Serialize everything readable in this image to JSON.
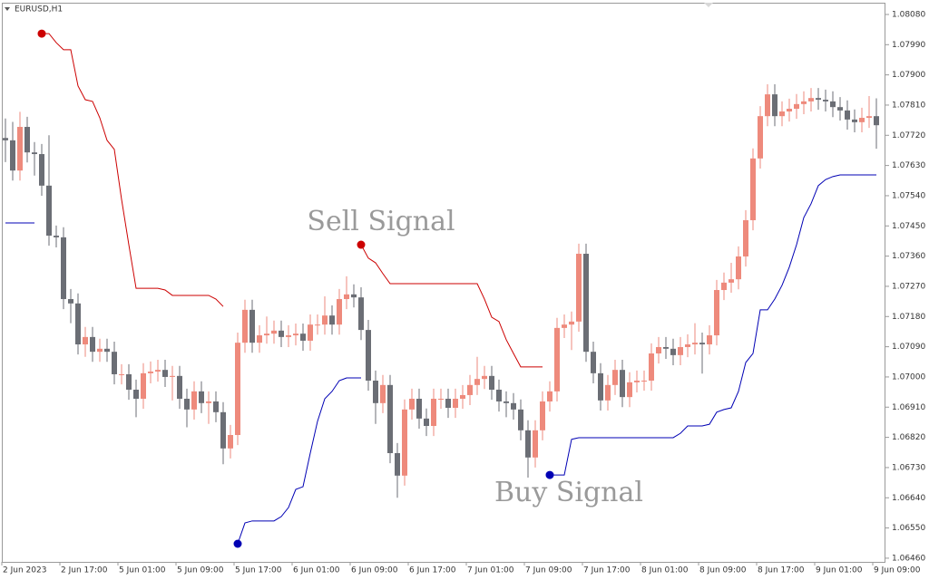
{
  "chart_data": {
    "type": "candlestick",
    "title": "EURUSD,H1",
    "categories": [
      "2 Jun 2023",
      null,
      null,
      null,
      null,
      null,
      null,
      null,
      "2 Jun 17:00",
      null,
      null,
      null,
      null,
      null,
      null,
      null,
      "5 Jun 01:00",
      null,
      null,
      null,
      null,
      null,
      null,
      null,
      "5 Jun 09:00",
      null,
      null,
      null,
      null,
      null,
      null,
      null,
      "5 Jun 17:00",
      null,
      null,
      null,
      null,
      null,
      null,
      null,
      "6 Jun 01:00",
      null,
      null,
      null,
      null,
      null,
      null,
      null,
      "6 Jun 09:00",
      null,
      null,
      null,
      null,
      null,
      null,
      null,
      "6 Jun 17:00",
      null,
      null,
      null,
      null,
      null,
      null,
      null,
      "7 Jun 01:00",
      null,
      null,
      null,
      null,
      null,
      null,
      null,
      "7 Jun 09:00",
      null,
      null,
      null,
      null,
      null,
      null,
      null,
      "7 Jun 17:00",
      null,
      null,
      null,
      null,
      null,
      null,
      null,
      "8 Jun 01:00",
      null,
      null,
      null,
      null,
      null,
      null,
      null,
      "8 Jun 09:00",
      null,
      null,
      null,
      null,
      null,
      null,
      null,
      "8 Jun 17:00",
      null,
      null,
      null,
      null,
      null,
      null,
      null,
      "9 Jun 01:00",
      null,
      null,
      null,
      null,
      null,
      null,
      null,
      "9 Jun 09:00"
    ],
    "open": [
      1.07712,
      1.07705,
      1.07615,
      1.07745,
      1.07669,
      1.07664,
      1.0757,
      1.07421,
      1.07416,
      1.07232,
      1.07219,
      1.07097,
      1.07119,
      1.07075,
      1.07084,
      1.07075,
      1.07008,
      1.07008,
      1.06962,
      1.06935,
      1.07011,
      1.07016,
      1.07021,
      1.07,
      1.07003,
      1.06935,
      1.06903,
      1.06957,
      1.06922,
      1.06927,
      1.06895,
      1.06787,
      1.06827,
      1.07102,
      1.072,
      1.07102,
      1.07124,
      1.07129,
      1.07138,
      1.07119,
      1.07124,
      1.07129,
      1.07108,
      1.07156,
      1.07156,
      1.07183,
      1.07156,
      1.07232,
      1.07246,
      1.07237,
      1.0714,
      1.06989,
      1.06922,
      1.06976,
      1.06773,
      1.06706,
      1.06903,
      1.06935,
      1.06876,
      1.06854,
      1.06935,
      1.06935,
      1.06908,
      1.06935,
      1.06946,
      1.06976,
      1.06994,
      1.07003,
      1.06962,
      1.06927,
      1.06922,
      1.06903,
      1.06841,
      1.0676,
      1.06841,
      1.06927,
      1.06957,
      1.07146,
      1.07156,
      1.07165,
      1.07367,
      1.07075,
      1.07011,
      1.0693,
      1.06976,
      1.07021,
      1.0694,
      1.06984,
      1.06989,
      1.06989,
      1.0707,
      1.07089,
      1.07084,
      1.07065,
      1.07089,
      1.07097,
      1.07102,
      1.07097,
      1.07124,
      1.07259,
      1.07281,
      1.07291,
      1.07359,
      1.07467,
      1.07651,
      1.07777,
      1.07842,
      1.07777,
      1.07791,
      1.07799,
      1.07813,
      1.07821,
      1.07831,
      1.07826,
      1.07821,
      1.07804,
      1.07794,
      1.07767,
      1.07759,
      1.07772,
      1.07777
    ],
    "high": [
      1.0777,
      1.0776,
      1.0779,
      1.07775,
      1.077,
      1.07694,
      1.0772,
      1.07451,
      1.07446,
      1.07262,
      1.07249,
      1.07149,
      1.07149,
      1.07114,
      1.07114,
      1.07105,
      1.07038,
      1.07038,
      1.06992,
      1.07041,
      1.07046,
      1.07051,
      1.07051,
      1.07033,
      1.07033,
      1.06965,
      1.06987,
      1.06987,
      1.06957,
      1.06957,
      1.06925,
      1.06857,
      1.07132,
      1.0723,
      1.0723,
      1.07154,
      1.0718,
      1.07168,
      1.07168,
      1.07154,
      1.07159,
      1.07159,
      1.07186,
      1.07186,
      1.0724,
      1.07213,
      1.07262,
      1.073,
      1.07276,
      1.07267,
      1.0717,
      1.07019,
      1.07006,
      1.07006,
      1.06803,
      1.06933,
      1.06965,
      1.06965,
      1.06906,
      1.06965,
      1.06965,
      1.06965,
      1.06965,
      1.06976,
      1.07006,
      1.0706,
      1.07033,
      1.07033,
      1.06992,
      1.06957,
      1.06952,
      1.06933,
      1.06871,
      1.06871,
      1.06957,
      1.06987,
      1.07176,
      1.07186,
      1.07195,
      1.07397,
      1.07397,
      1.07105,
      1.07041,
      1.07006,
      1.07051,
      1.07051,
      1.07014,
      1.07019,
      1.07019,
      1.071,
      1.07119,
      1.07119,
      1.07114,
      1.07119,
      1.07127,
      1.0716,
      1.07132,
      1.07154,
      1.07289,
      1.07311,
      1.0734,
      1.07389,
      1.07497,
      1.07681,
      1.07807,
      1.07872,
      1.07872,
      1.07821,
      1.07829,
      1.07843,
      1.07851,
      1.07861,
      1.07861,
      1.07856,
      1.07851,
      1.07834,
      1.07824,
      1.07797,
      1.07802,
      1.07837,
      1.0783
    ],
    "low": [
      1.0764,
      1.07585,
      1.07585,
      1.07639,
      1.076,
      1.0754,
      1.07391,
      1.07386,
      1.07202,
      1.0716,
      1.07067,
      1.0706,
      1.07045,
      1.07045,
      1.07045,
      1.06978,
      1.06978,
      1.06932,
      1.0688,
      1.06905,
      1.06981,
      1.06986,
      1.0697,
      1.0693,
      1.06905,
      1.0685,
      1.06873,
      1.06892,
      1.0686,
      1.06865,
      1.0674,
      1.06757,
      1.06797,
      1.07072,
      1.07072,
      1.07072,
      1.07099,
      1.07099,
      1.07089,
      1.07089,
      1.07094,
      1.07078,
      1.07078,
      1.07126,
      1.07126,
      1.07126,
      1.07126,
      1.07202,
      1.07207,
      1.0711,
      1.06959,
      1.0686,
      1.06892,
      1.06743,
      1.0664,
      1.06676,
      1.06873,
      1.06846,
      1.06824,
      1.06824,
      1.06905,
      1.06878,
      1.06878,
      1.06905,
      1.06916,
      1.06946,
      1.06964,
      1.06932,
      1.06897,
      1.0688,
      1.06873,
      1.06811,
      1.067,
      1.0673,
      1.06811,
      1.06897,
      1.06927,
      1.07116,
      1.0708,
      1.07135,
      1.07045,
      1.06981,
      1.069,
      1.069,
      1.06946,
      1.0691,
      1.0691,
      1.06954,
      1.06959,
      1.06959,
      1.0704,
      1.07054,
      1.07035,
      1.07035,
      1.07059,
      1.07067,
      1.0701,
      1.07067,
      1.07094,
      1.07229,
      1.07251,
      1.07261,
      1.07329,
      1.07437,
      1.07621,
      1.07747,
      1.07747,
      1.07747,
      1.07761,
      1.07769,
      1.07783,
      1.07791,
      1.07796,
      1.07791,
      1.07774,
      1.07764,
      1.07737,
      1.07729,
      1.07729,
      1.07742,
      1.0768
    ],
    "close": [
      1.07705,
      1.07615,
      1.07745,
      1.07669,
      1.07664,
      1.0757,
      1.07421,
      1.07416,
      1.07232,
      1.07219,
      1.07097,
      1.07119,
      1.07075,
      1.07084,
      1.07075,
      1.07008,
      1.07008,
      1.06962,
      1.06935,
      1.07011,
      1.07016,
      1.07021,
      1.07,
      1.07003,
      1.06935,
      1.06903,
      1.06957,
      1.06922,
      1.06927,
      1.06895,
      1.06787,
      1.06827,
      1.07102,
      1.072,
      1.07102,
      1.07124,
      1.07129,
      1.07138,
      1.07119,
      1.07124,
      1.07129,
      1.07108,
      1.07156,
      1.07156,
      1.07183,
      1.07156,
      1.07232,
      1.07246,
      1.07237,
      1.0714,
      1.06989,
      1.06922,
      1.06976,
      1.06773,
      1.06706,
      1.06903,
      1.06935,
      1.06876,
      1.06854,
      1.06935,
      1.06935,
      1.06908,
      1.06935,
      1.06946,
      1.06976,
      1.06994,
      1.07003,
      1.06962,
      1.06927,
      1.06922,
      1.06903,
      1.06841,
      1.0676,
      1.06841,
      1.06927,
      1.06957,
      1.07146,
      1.07156,
      1.07165,
      1.07367,
      1.07075,
      1.07011,
      1.0693,
      1.06976,
      1.07021,
      1.0694,
      1.06984,
      1.06989,
      1.06989,
      1.0707,
      1.07089,
      1.07084,
      1.07065,
      1.07089,
      1.07097,
      1.07102,
      1.07097,
      1.07124,
      1.07259,
      1.07281,
      1.07291,
      1.07359,
      1.07467,
      1.07651,
      1.07777,
      1.07842,
      1.07777,
      1.07791,
      1.07799,
      1.07813,
      1.07821,
      1.07831,
      1.07826,
      1.07821,
      1.07804,
      1.07794,
      1.07767,
      1.07759,
      1.07772,
      1.07777,
      1.0775
    ],
    "up_color": "#ee8a7c",
    "down_color": "#6b6e75",
    "lines": [
      {
        "color": "#cc0000",
        "values": [
          null,
          null,
          null,
          null,
          null,
          1.08023,
          1.08023,
          1.07996,
          1.07975,
          1.07975,
          1.07867,
          1.07826,
          1.07821,
          1.07772,
          1.07705,
          1.07678,
          1.07529,
          1.07394,
          1.07264,
          1.07264,
          1.07264,
          1.07264,
          1.07259,
          1.07243,
          1.07243,
          1.07243,
          1.07243,
          1.07243,
          1.07243,
          1.07232,
          1.0721,
          null,
          null,
          null,
          null,
          null,
          null,
          null,
          null,
          null,
          null,
          null,
          null,
          null,
          null,
          null,
          null,
          null,
          null,
          1.07394,
          1.07354,
          1.0734,
          1.07308,
          1.07278,
          1.07278,
          1.07278,
          1.07278,
          1.07278,
          1.07278,
          1.07278,
          1.07278,
          1.07278,
          1.07278,
          1.07278,
          1.07278,
          1.07278,
          1.07232,
          1.07178,
          1.07165,
          1.07111,
          1.0707,
          1.0703,
          1.0703,
          1.0703,
          1.0703,
          null,
          null,
          null,
          null,
          null,
          null,
          null,
          null,
          null,
          null,
          null,
          null,
          null,
          null,
          null,
          null,
          null,
          null,
          null,
          null,
          null,
          null,
          null,
          null,
          null,
          null,
          null,
          null,
          null,
          null,
          null,
          null,
          null,
          null,
          null,
          null,
          null,
          null,
          null,
          null,
          null,
          null,
          null,
          null,
          null,
          null
        ]
      },
      {
        "color": "#0000b4",
        "values": [
          1.07459,
          1.07459,
          1.07459,
          1.07459,
          1.07459,
          null,
          null,
          null,
          null,
          null,
          null,
          null,
          null,
          null,
          null,
          null,
          null,
          null,
          null,
          null,
          null,
          null,
          null,
          null,
          null,
          null,
          null,
          null,
          null,
          null,
          null,
          null,
          1.06503,
          1.06565,
          1.06571,
          1.06571,
          1.06571,
          1.06571,
          1.06584,
          1.06611,
          1.06665,
          1.06673,
          1.06773,
          1.06868,
          1.06935,
          1.06957,
          1.06989,
          1.06997,
          1.06997,
          1.06997,
          null,
          null,
          null,
          null,
          null,
          null,
          null,
          null,
          null,
          null,
          null,
          null,
          null,
          null,
          null,
          null,
          null,
          null,
          null,
          null,
          null,
          null,
          null,
          null,
          null,
          1.06708,
          1.06708,
          1.06708,
          1.06814,
          1.06819,
          1.06819,
          1.06819,
          1.06819,
          1.06819,
          1.06819,
          1.06819,
          1.06819,
          1.06819,
          1.06819,
          1.06819,
          1.06819,
          1.06819,
          1.06819,
          1.06832,
          1.06854,
          1.06854,
          1.06854,
          1.06859,
          1.06895,
          1.06903,
          1.06908,
          1.06957,
          1.07043,
          1.0707,
          1.072,
          1.072,
          1.07232,
          1.07273,
          1.07327,
          1.07394,
          1.07475,
          1.07516,
          1.0757,
          1.07588,
          1.07597,
          1.07602,
          1.07602,
          1.07602,
          1.07602,
          1.07602,
          1.07602
        ]
      }
    ],
    "annotations": [
      "Sell Signal",
      "Buy Signal"
    ],
    "ylim": [
      1.06449,
      1.08115
    ],
    "yticks": [
      {
        "value": 1.0808,
        "label": "1.08080"
      },
      {
        "value": 1.0799,
        "label": "1.07990"
      },
      {
        "value": 1.079,
        "label": "1.07900"
      },
      {
        "value": 1.0781,
        "label": "1.07810"
      },
      {
        "value": 1.0772,
        "label": "1.07720"
      },
      {
        "value": 1.0763,
        "label": "1.07630"
      },
      {
        "value": 1.0754,
        "label": "1.07540"
      },
      {
        "value": 1.0745,
        "label": "1.07450"
      },
      {
        "value": 1.0736,
        "label": "1.07360"
      },
      {
        "value": 1.0727,
        "label": "1.07270"
      },
      {
        "value": 1.0718,
        "label": "1.07180"
      },
      {
        "value": 1.0709,
        "label": "1.07090"
      },
      {
        "value": 1.07,
        "label": "1.07000"
      },
      {
        "value": 1.0691,
        "label": "1.06910"
      },
      {
        "value": 1.0682,
        "label": "1.06820"
      },
      {
        "value": 1.0673,
        "label": "1.06730"
      },
      {
        "value": 1.0664,
        "label": "1.06640"
      },
      {
        "value": 1.0655,
        "label": "1.06550"
      },
      {
        "value": 1.0646,
        "label": "1.06460"
      }
    ]
  }
}
